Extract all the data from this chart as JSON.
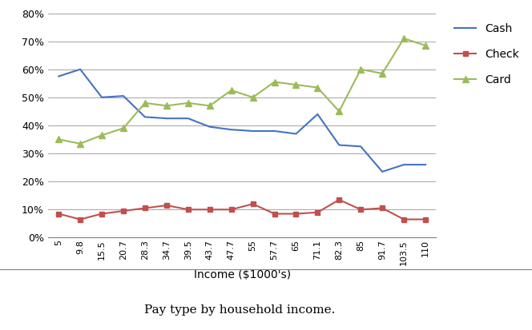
{
  "x_labels": [
    "5",
    "9.8",
    "15.5",
    "20.7",
    "28.3",
    "34.7",
    "39.5",
    "43.7",
    "47.7",
    "55",
    "57.7",
    "65",
    "71.1",
    "82.3",
    "85",
    "91.7",
    "103.5",
    "110"
  ],
  "cash": [
    0.575,
    0.6,
    0.5,
    0.505,
    0.43,
    0.425,
    0.425,
    0.395,
    0.385,
    0.38,
    0.38,
    0.37,
    0.44,
    0.33,
    0.325,
    0.235,
    0.26,
    0.26
  ],
  "check": [
    0.085,
    0.065,
    0.085,
    0.095,
    0.105,
    0.115,
    0.1,
    0.1,
    0.1,
    0.12,
    0.085,
    0.085,
    0.09,
    0.135,
    0.1,
    0.105,
    0.065,
    0.065
  ],
  "card": [
    0.35,
    0.335,
    0.365,
    0.39,
    0.48,
    0.47,
    0.48,
    0.47,
    0.525,
    0.5,
    0.555,
    0.545,
    0.535,
    0.45,
    0.6,
    0.585,
    0.71,
    0.685
  ],
  "cash_color": "#4472C4",
  "check_color": "#C0504D",
  "card_color": "#9BBB59",
  "xlabel": "Income ($1000's)",
  "caption": "Pay type by household income.",
  "ylim": [
    0.0,
    0.8
  ],
  "yticks": [
    0.0,
    0.1,
    0.2,
    0.3,
    0.4,
    0.5,
    0.6,
    0.7,
    0.8
  ],
  "legend_labels": [
    "Cash",
    "Check",
    "Card"
  ]
}
